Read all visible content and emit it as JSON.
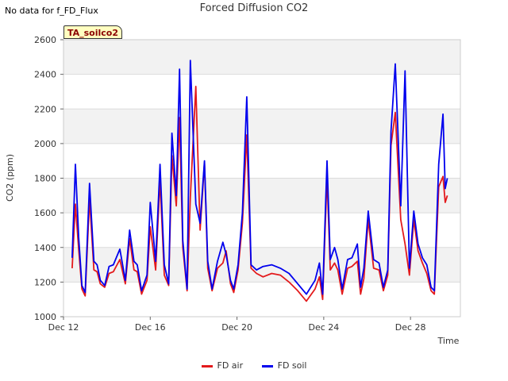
{
  "header": {
    "nodata_text": "No data for f_FD_Flux",
    "tag_text": "TA_soilco2"
  },
  "chart_data": {
    "type": "line",
    "title": "Forced Diffusion CO2",
    "xlabel": "Time",
    "ylabel": "CO2 (ppm)",
    "ylim": [
      1000,
      2600
    ],
    "yticks": [
      1000,
      1200,
      1400,
      1600,
      1800,
      2000,
      2200,
      2400,
      2600
    ],
    "xlim": [
      12,
      30.3
    ],
    "xticks": [
      {
        "value": 12,
        "label": "Dec 12"
      },
      {
        "value": 16,
        "label": "Dec 16"
      },
      {
        "value": 20,
        "label": "Dec 20"
      },
      {
        "value": 24,
        "label": "Dec 24"
      },
      {
        "value": 28,
        "label": "Dec 28"
      }
    ],
    "grid": "horizontal bands",
    "legend_position": "bottom",
    "series": [
      {
        "name": "FD air",
        "color": "#e31a1c",
        "x": [
          12.4,
          12.55,
          12.7,
          12.85,
          13.0,
          13.2,
          13.4,
          13.55,
          13.7,
          13.9,
          14.1,
          14.3,
          14.6,
          14.85,
          15.05,
          15.25,
          15.4,
          15.6,
          15.85,
          16.0,
          16.25,
          16.45,
          16.65,
          16.85,
          17.0,
          17.2,
          17.35,
          17.5,
          17.7,
          17.85,
          18.1,
          18.3,
          18.5,
          18.65,
          18.85,
          19.1,
          19.35,
          19.5,
          19.7,
          19.85,
          20.05,
          20.25,
          20.45,
          20.65,
          20.9,
          21.2,
          21.6,
          22.0,
          22.4,
          22.8,
          23.2,
          23.6,
          23.8,
          23.95,
          24.15,
          24.3,
          24.5,
          24.65,
          24.85,
          25.1,
          25.3,
          25.55,
          25.7,
          25.85,
          26.05,
          26.3,
          26.55,
          26.75,
          26.95,
          27.1,
          27.3,
          27.55,
          27.75,
          27.95,
          28.15,
          28.35,
          28.55,
          28.75,
          28.95,
          29.1,
          29.3,
          29.5,
          29.6,
          29.7
        ],
        "y": [
          1280,
          1650,
          1390,
          1160,
          1120,
          1680,
          1270,
          1260,
          1190,
          1170,
          1250,
          1260,
          1330,
          1190,
          1450,
          1270,
          1260,
          1130,
          1210,
          1520,
          1270,
          1790,
          1240,
          1180,
          1930,
          1640,
          2150,
          1400,
          1150,
          1690,
          2330,
          1500,
          1890,
          1280,
          1150,
          1280,
          1310,
          1380,
          1190,
          1140,
          1270,
          1540,
          2050,
          1280,
          1250,
          1230,
          1250,
          1240,
          1200,
          1150,
          1090,
          1160,
          1230,
          1100,
          1810,
          1270,
          1310,
          1270,
          1130,
          1280,
          1290,
          1320,
          1130,
          1220,
          1560,
          1280,
          1270,
          1150,
          1240,
          1990,
          2180,
          1560,
          1420,
          1240,
          1560,
          1380,
          1310,
          1250,
          1150,
          1130,
          1750,
          1810,
          1660,
          1700
        ]
      },
      {
        "name": "FD soil",
        "color": "#0000ee",
        "x": [
          12.4,
          12.55,
          12.7,
          12.85,
          13.0,
          13.2,
          13.4,
          13.55,
          13.7,
          13.9,
          14.1,
          14.3,
          14.6,
          14.85,
          15.05,
          15.25,
          15.4,
          15.6,
          15.85,
          16.0,
          16.25,
          16.45,
          16.65,
          16.85,
          17.0,
          17.2,
          17.35,
          17.5,
          17.7,
          17.85,
          18.1,
          18.3,
          18.5,
          18.65,
          18.85,
          19.1,
          19.35,
          19.5,
          19.7,
          19.85,
          20.05,
          20.25,
          20.45,
          20.65,
          20.9,
          21.2,
          21.6,
          22.0,
          22.4,
          22.8,
          23.2,
          23.6,
          23.8,
          23.95,
          24.15,
          24.3,
          24.5,
          24.65,
          24.85,
          25.1,
          25.3,
          25.55,
          25.7,
          25.85,
          26.05,
          26.3,
          26.55,
          26.75,
          26.95,
          27.1,
          27.3,
          27.55,
          27.75,
          27.95,
          28.15,
          28.35,
          28.55,
          28.75,
          28.95,
          29.1,
          29.3,
          29.5,
          29.6,
          29.7
        ],
        "y": [
          1340,
          1880,
          1460,
          1180,
          1140,
          1770,
          1320,
          1300,
          1210,
          1180,
          1290,
          1300,
          1390,
          1210,
          1500,
          1320,
          1300,
          1150,
          1240,
          1660,
          1320,
          1880,
          1300,
          1190,
          2060,
          1700,
          2430,
          1440,
          1160,
          2480,
          1650,
          1540,
          1900,
          1320,
          1160,
          1320,
          1430,
          1360,
          1210,
          1160,
          1300,
          1600,
          2270,
          1300,
          1270,
          1290,
          1300,
          1280,
          1250,
          1190,
          1130,
          1210,
          1310,
          1130,
          1900,
          1330,
          1400,
          1330,
          1160,
          1330,
          1340,
          1420,
          1170,
          1280,
          1610,
          1330,
          1310,
          1170,
          1270,
          2070,
          2460,
          1640,
          2420,
          1280,
          1610,
          1420,
          1340,
          1300,
          1170,
          1150,
          1880,
          2170,
          1740,
          1800
        ]
      }
    ]
  }
}
